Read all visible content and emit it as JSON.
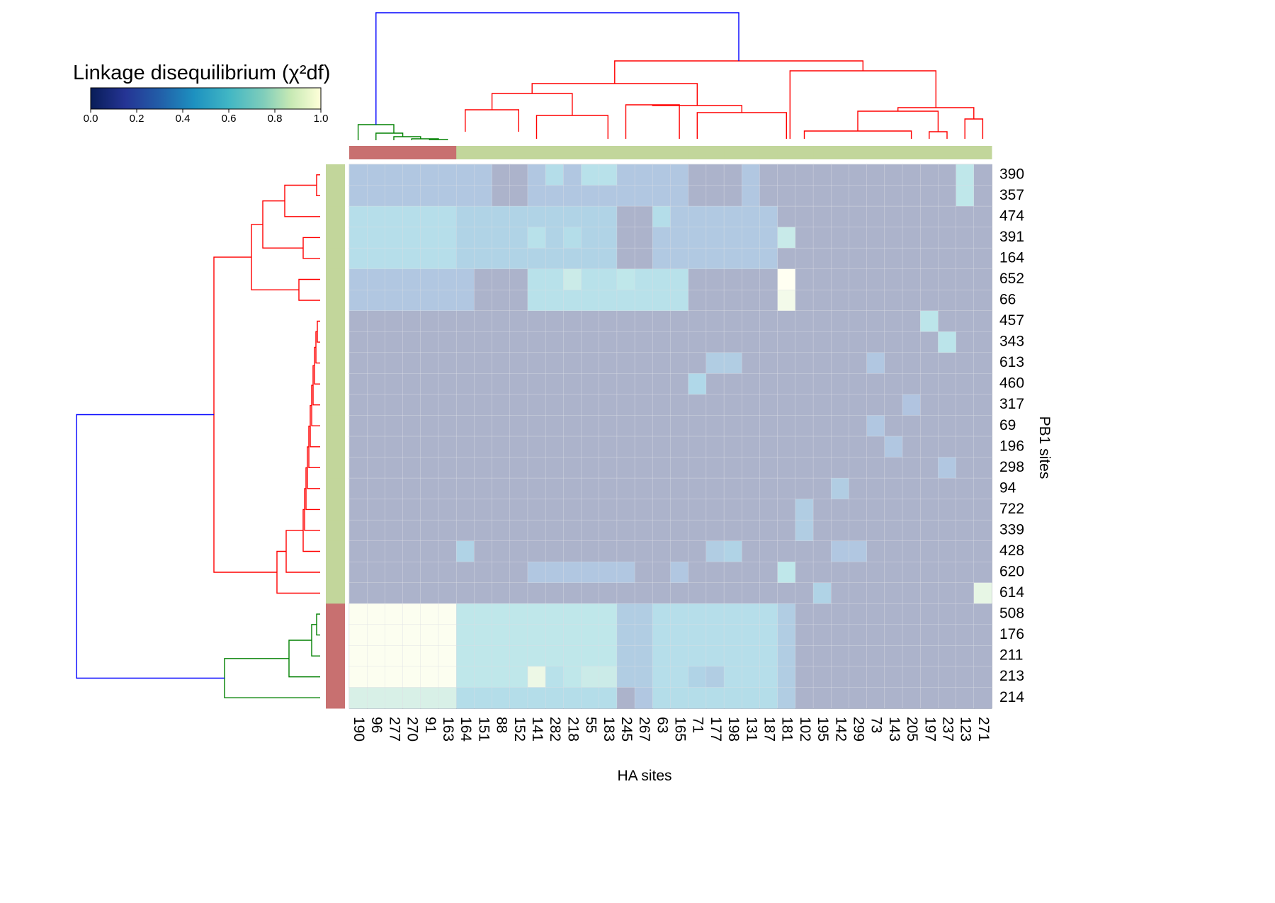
{
  "chart_data": {
    "type": "heatmap",
    "title": "Linkage disequilibrium (χ²df)",
    "colorbar": {
      "label": "Linkage disequilibrium (χ²df)",
      "ticks": [
        "0.0",
        "0.2",
        "0.4",
        "0.6",
        "0.8",
        "1.0"
      ],
      "range": [
        0,
        1
      ],
      "colormap": "YlGnBu_r",
      "placement": "top-left"
    },
    "xlabel": "HA sites",
    "ylabel": "PB1 sites",
    "x": [
      "190",
      "96",
      "277",
      "270",
      "91",
      "163",
      "164",
      "151",
      "88",
      "152",
      "141",
      "282",
      "218",
      "55",
      "183",
      "245",
      "267",
      "63",
      "165",
      "71",
      "177",
      "198",
      "131",
      "187",
      "181",
      "102",
      "195",
      "142",
      "299",
      "73",
      "143",
      "205",
      "197",
      "237",
      "123",
      "271"
    ],
    "y": [
      "390",
      "357",
      "474",
      "391",
      "164",
      "652",
      "66",
      "457",
      "343",
      "613",
      "460",
      "317",
      "69",
      "196",
      "298",
      "94",
      "722",
      "339",
      "428",
      "620",
      "614",
      "508",
      "176",
      "211",
      "213",
      "214"
    ],
    "column_clusters": [
      "2",
      "2",
      "2",
      "2",
      "2",
      "2",
      "1",
      "1",
      "1",
      "1",
      "1",
      "1",
      "1",
      "1",
      "1",
      "1",
      "1",
      "1",
      "1",
      "1",
      "1",
      "1",
      "1",
      "1",
      "1",
      "1",
      "1",
      "1",
      "1",
      "1",
      "1",
      "1",
      "1",
      "1",
      "1",
      "1"
    ],
    "row_clusters": [
      "1",
      "1",
      "1",
      "1",
      "1",
      "1",
      "1",
      "1",
      "1",
      "1",
      "1",
      "1",
      "1",
      "1",
      "1",
      "1",
      "1",
      "1",
      "1",
      "1",
      "1",
      "2",
      "2",
      "2",
      "2",
      "2"
    ],
    "cluster_colors": {
      "1": "#c2d69b",
      "2": "#c87070"
    },
    "dendrogram_colors": {
      "root": "#0000ff",
      "cluster1": "#ff0000",
      "cluster2": "#008000"
    },
    "overlay_opacity": 0.35,
    "base_value": 0.05,
    "values_blocks": [
      {
        "rows": [
          21,
          24
        ],
        "cols": [
          0,
          5
        ],
        "v": 0.98
      },
      {
        "rows": [
          25,
          25
        ],
        "cols": [
          0,
          5
        ],
        "v": 0.78
      },
      {
        "rows": [
          21,
          24
        ],
        "cols": [
          6,
          14
        ],
        "v": 0.62
      },
      {
        "rows": [
          21,
          24
        ],
        "cols": [
          15,
          16
        ],
        "v": 0.35
      },
      {
        "rows": [
          21,
          24
        ],
        "cols": [
          17,
          23
        ],
        "v": 0.52
      },
      {
        "rows": [
          21,
          25
        ],
        "cols": [
          24,
          24
        ],
        "v": 0.35
      },
      {
        "rows": [
          25,
          25
        ],
        "cols": [
          6,
          23
        ],
        "v": 0.5
      },
      {
        "rows": [
          0,
          1
        ],
        "cols": [
          0,
          7
        ],
        "v": 0.3
      },
      {
        "rows": [
          0,
          1
        ],
        "cols": [
          10,
          18
        ],
        "v": 0.3
      },
      {
        "rows": [
          0,
          1
        ],
        "cols": [
          22,
          22
        ],
        "v": 0.3
      },
      {
        "rows": [
          2,
          4
        ],
        "cols": [
          0,
          5
        ],
        "v": 0.52
      },
      {
        "rows": [
          2,
          4
        ],
        "cols": [
          6,
          14
        ],
        "v": 0.4
      },
      {
        "rows": [
          2,
          4
        ],
        "cols": [
          17,
          23
        ],
        "v": 0.32
      },
      {
        "rows": [
          5,
          6
        ],
        "cols": [
          0,
          6
        ],
        "v": 0.3
      },
      {
        "rows": [
          5,
          6
        ],
        "cols": [
          10,
          18
        ],
        "v": 0.55
      }
    ],
    "values_cells": [
      {
        "r": 0,
        "c": 34,
        "v": 0.62
      },
      {
        "r": 1,
        "c": 34,
        "v": 0.62
      },
      {
        "r": 0,
        "c": 11,
        "v": 0.5
      },
      {
        "r": 0,
        "c": 13,
        "v": 0.55
      },
      {
        "r": 0,
        "c": 14,
        "v": 0.55
      },
      {
        "r": 2,
        "c": 15,
        "v": 0.05
      },
      {
        "r": 2,
        "c": 16,
        "v": 0.05
      },
      {
        "r": 2,
        "c": 17,
        "v": 0.5
      },
      {
        "r": 3,
        "c": 10,
        "v": 0.55
      },
      {
        "r": 3,
        "c": 12,
        "v": 0.5
      },
      {
        "r": 3,
        "c": 24,
        "v": 0.68
      },
      {
        "r": 4,
        "c": 15,
        "v": 0.05
      },
      {
        "r": 4,
        "c": 16,
        "v": 0.05
      },
      {
        "r": 5,
        "c": 12,
        "v": 0.7
      },
      {
        "r": 5,
        "c": 15,
        "v": 0.62
      },
      {
        "r": 5,
        "c": 24,
        "v": 1.0
      },
      {
        "r": 6,
        "c": 24,
        "v": 0.92
      },
      {
        "r": 7,
        "c": 32,
        "v": 0.6
      },
      {
        "r": 8,
        "c": 33,
        "v": 0.58
      },
      {
        "r": 9,
        "c": 20,
        "v": 0.35
      },
      {
        "r": 9,
        "c": 21,
        "v": 0.35
      },
      {
        "r": 9,
        "c": 29,
        "v": 0.3
      },
      {
        "r": 10,
        "c": 19,
        "v": 0.45
      },
      {
        "r": 11,
        "c": 31,
        "v": 0.28
      },
      {
        "r": 12,
        "c": 29,
        "v": 0.3
      },
      {
        "r": 13,
        "c": 30,
        "v": 0.3
      },
      {
        "r": 14,
        "c": 33,
        "v": 0.3
      },
      {
        "r": 15,
        "c": 27,
        "v": 0.35
      },
      {
        "r": 16,
        "c": 25,
        "v": 0.35
      },
      {
        "r": 17,
        "c": 25,
        "v": 0.35
      },
      {
        "r": 18,
        "c": 6,
        "v": 0.4
      },
      {
        "r": 18,
        "c": 20,
        "v": 0.35
      },
      {
        "r": 18,
        "c": 21,
        "v": 0.4
      },
      {
        "r": 18,
        "c": 27,
        "v": 0.3
      },
      {
        "r": 18,
        "c": 28,
        "v": 0.3
      },
      {
        "r": 19,
        "c": 10,
        "v": 0.3
      },
      {
        "r": 19,
        "c": 11,
        "v": 0.3
      },
      {
        "r": 19,
        "c": 12,
        "v": 0.3
      },
      {
        "r": 19,
        "c": 13,
        "v": 0.3
      },
      {
        "r": 19,
        "c": 14,
        "v": 0.3
      },
      {
        "r": 19,
        "c": 15,
        "v": 0.3
      },
      {
        "r": 19,
        "c": 18,
        "v": 0.3
      },
      {
        "r": 19,
        "c": 24,
        "v": 0.62
      },
      {
        "r": 20,
        "c": 26,
        "v": 0.4
      },
      {
        "r": 20,
        "c": 35,
        "v": 0.85
      },
      {
        "r": 24,
        "c": 10,
        "v": 0.88
      },
      {
        "r": 24,
        "c": 11,
        "v": 0.55
      },
      {
        "r": 24,
        "c": 13,
        "v": 0.7
      },
      {
        "r": 24,
        "c": 14,
        "v": 0.7
      },
      {
        "r": 24,
        "c": 19,
        "v": 0.4
      },
      {
        "r": 24,
        "c": 20,
        "v": 0.35
      },
      {
        "r": 25,
        "c": 15,
        "v": 0.05
      },
      {
        "r": 25,
        "c": 16,
        "v": 0.3
      }
    ],
    "grid": true
  }
}
